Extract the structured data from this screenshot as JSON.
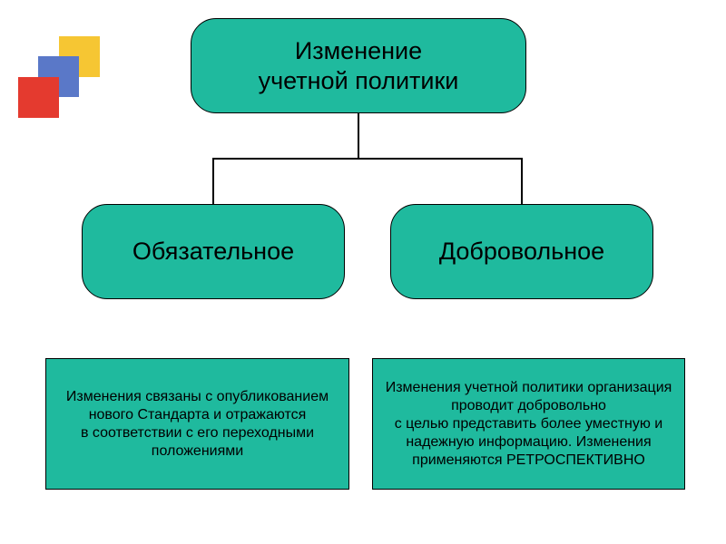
{
  "diagram": {
    "type": "tree",
    "background_color": "#ffffff",
    "node_fill": "#1fba9e",
    "node_border": "#000000",
    "connector_color": "#000000",
    "text_color": "#000000",
    "title_fontsize": 27,
    "desc_fontsize": 16,
    "border_radius": 28,
    "root": {
      "label": "Изменение\nучетной политики"
    },
    "children": [
      {
        "label": "Обязательное"
      },
      {
        "label": "Добровольное"
      }
    ],
    "descriptions": [
      "Изменения связаны с опубликованием  нового Стандарта и отражаются\nв соответствии с его переходными положениями",
      "Изменения учетной политики организация проводит добровольно\nс целью представить более уместную и надежную информацию. Изменения применяются РЕТРОСПЕКТИВНО"
    ]
  },
  "decoration": {
    "colors": {
      "yellow": "#f6c633",
      "blue": "#5a78c8",
      "red": "#e43a2f"
    }
  }
}
